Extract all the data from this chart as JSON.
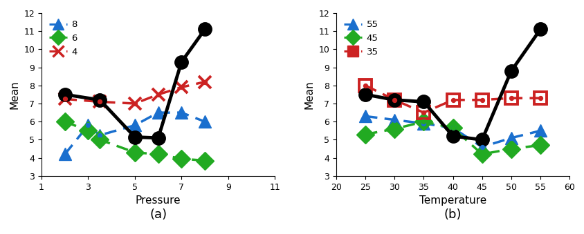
{
  "chart_a": {
    "title": "(a)",
    "xlabel": "Pressure",
    "ylabel": "Mean",
    "xlim": [
      1,
      11
    ],
    "ylim": [
      3,
      12
    ],
    "xticks": [
      1,
      3,
      5,
      7,
      9,
      11
    ],
    "yticks": [
      3,
      4,
      5,
      6,
      7,
      8,
      9,
      10,
      11,
      12
    ],
    "blue": {
      "label": "8",
      "color": "#1a6fce",
      "x": [
        2.0,
        3.0,
        3.5,
        5.0,
        6.0,
        7.0,
        8.0
      ],
      "y": [
        4.2,
        5.8,
        5.25,
        5.8,
        6.5,
        6.5,
        6.0
      ]
    },
    "green": {
      "label": "6",
      "color": "#22aa22",
      "x": [
        2.0,
        3.0,
        3.5,
        5.0,
        6.0,
        7.0,
        8.0
      ],
      "y": [
        6.0,
        5.5,
        5.0,
        4.3,
        4.2,
        3.95,
        3.85
      ]
    },
    "red": {
      "label": "4",
      "color": "#cc2222",
      "x": [
        2.0,
        3.5,
        5.0,
        6.0,
        7.0,
        8.0
      ],
      "y": [
        7.25,
        7.1,
        7.0,
        7.5,
        7.9,
        8.2
      ]
    },
    "black": {
      "x": [
        2.0,
        3.5,
        5.0,
        6.0,
        7.0,
        8.0
      ],
      "y": [
        7.5,
        7.2,
        5.15,
        5.1,
        9.3,
        11.1
      ]
    }
  },
  "chart_b": {
    "title": "(b)",
    "xlabel": "Temperature",
    "ylabel": "Mean",
    "xlim": [
      20,
      60
    ],
    "ylim": [
      3,
      12
    ],
    "xticks": [
      20,
      25,
      30,
      35,
      40,
      45,
      50,
      55,
      60
    ],
    "yticks": [
      3,
      4,
      5,
      6,
      7,
      8,
      9,
      10,
      11,
      12
    ],
    "blue": {
      "label": "55",
      "color": "#1a6fce",
      "x": [
        25,
        30,
        35,
        40,
        45,
        50,
        55
      ],
      "y": [
        6.3,
        6.1,
        5.9,
        5.65,
        4.6,
        5.1,
        5.5
      ]
    },
    "green": {
      "label": "45",
      "color": "#22aa22",
      "x": [
        25,
        30,
        35,
        40,
        45,
        50,
        55
      ],
      "y": [
        5.3,
        5.6,
        6.0,
        5.65,
        4.2,
        4.5,
        4.7
      ]
    },
    "red": {
      "label": "35",
      "color": "#cc2222",
      "x": [
        25,
        30,
        35,
        40,
        45,
        50,
        55
      ],
      "y": [
        8.0,
        7.2,
        6.5,
        7.2,
        7.2,
        7.3,
        7.3
      ]
    },
    "black": {
      "x": [
        25,
        30,
        35,
        40,
        45,
        50,
        55
      ],
      "y": [
        7.5,
        7.2,
        7.1,
        5.2,
        5.0,
        8.8,
        11.1
      ]
    }
  }
}
